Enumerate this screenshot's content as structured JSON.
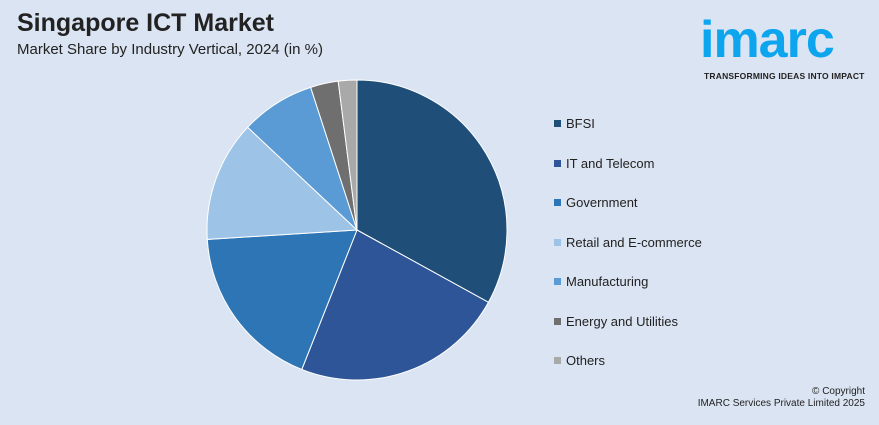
{
  "header": {
    "title": "Singapore ICT Market",
    "subtitle": "Market Share by Industry Vertical, 2024 (in %)"
  },
  "logo": {
    "word": "imarc",
    "tagline": "TRANSFORMING IDEAS INTO IMPACT",
    "color": "#0ea5ef"
  },
  "chart_data": {
    "type": "pie",
    "title": "Singapore ICT Market",
    "subtitle": "Market Share by Industry Vertical, 2024 (in %)",
    "start_angle": "12 o'clock, clockwise",
    "legend_placement": "right",
    "categories": [
      "BFSI",
      "IT and Telecom",
      "Government",
      "Retail and E-commerce",
      "Manufacturing",
      "Energy and Utilities",
      "Others"
    ],
    "values": [
      33,
      23,
      18,
      13,
      8,
      3,
      2
    ],
    "colors": [
      "#1f4e79",
      "#2e5597",
      "#2e75b6",
      "#9dc3e6",
      "#5b9bd5",
      "#6f6f6f",
      "#a9a9a9"
    ]
  },
  "footer": {
    "copyright": "© Copyright",
    "company": "IMARC Services Private Limited 2025"
  }
}
